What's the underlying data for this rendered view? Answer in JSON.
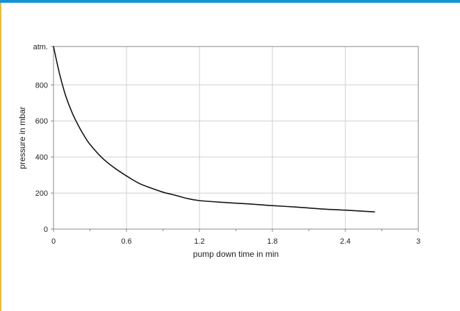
{
  "colors": {
    "top_bar": "#1592d3",
    "left_rule": "#e8b93a",
    "grid": "#cfcfcf",
    "frame": "#888888",
    "curve": "#111111"
  },
  "chart_data": {
    "type": "line",
    "title": "",
    "xlabel": "pump down time in min",
    "ylabel": "pressure in mbar",
    "xlim": [
      0,
      3
    ],
    "ylim": [
      0,
      1013
    ],
    "grid": true,
    "x_ticks": [
      {
        "value": 0,
        "label": "0"
      },
      {
        "value": 0.6,
        "label": "0.6"
      },
      {
        "value": 1.2,
        "label": "1.2"
      },
      {
        "value": 1.8,
        "label": "1.8"
      },
      {
        "value": 2.4,
        "label": "2.4"
      },
      {
        "value": 3,
        "label": "3"
      }
    ],
    "x_minor_ticks": [
      0.3,
      0.9,
      1.5,
      2.1,
      2.7
    ],
    "y_ticks": [
      {
        "value": 0,
        "label": "0"
      },
      {
        "value": 200,
        "label": "200"
      },
      {
        "value": 400,
        "label": "400"
      },
      {
        "value": 600,
        "label": "600"
      },
      {
        "value": 800,
        "label": "800"
      },
      {
        "value": 1013,
        "label": "atm."
      }
    ],
    "series": [
      {
        "x": [
          0,
          0.05,
          0.1,
          0.15,
          0.2,
          0.25,
          0.3,
          0.4,
          0.5,
          0.6,
          0.7,
          0.8,
          0.9,
          1.0,
          1.1,
          1.2,
          1.4,
          1.6,
          1.8,
          2.0,
          2.2,
          2.4,
          2.6,
          2.64
        ],
        "y": [
          1013,
          860,
          740,
          650,
          580,
          520,
          470,
          395,
          340,
          295,
          255,
          228,
          205,
          188,
          170,
          158,
          148,
          140,
          130,
          122,
          112,
          105,
          97,
          95
        ]
      }
    ]
  }
}
